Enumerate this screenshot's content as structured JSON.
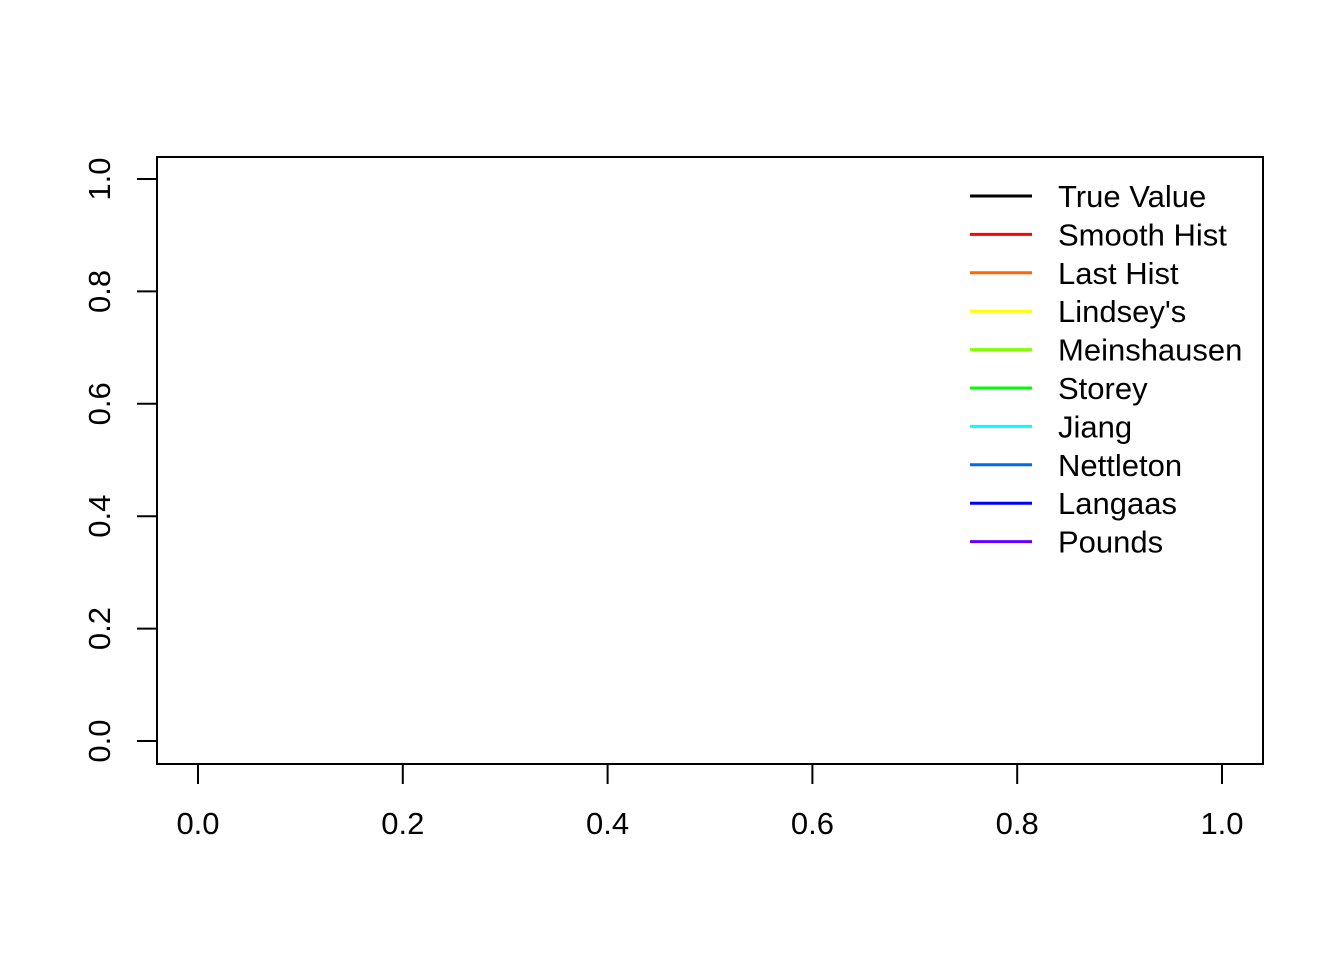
{
  "chart_data": {
    "type": "line",
    "title": "",
    "xlabel": "",
    "ylabel": "",
    "xlim": [
      0,
      1
    ],
    "ylim": [
      0,
      1
    ],
    "x_ticks": [
      "0.0",
      "0.2",
      "0.4",
      "0.6",
      "0.8",
      "1.0"
    ],
    "y_ticks": [
      "0.0",
      "0.2",
      "0.4",
      "0.6",
      "0.8",
      "1.0"
    ],
    "grid": false,
    "legend_position": "top-right",
    "series": [
      {
        "name": "True Value",
        "color": "#000000",
        "values": []
      },
      {
        "name": "Smooth Hist",
        "color": "#ff0000",
        "values": []
      },
      {
        "name": "Last Hist",
        "color": "#ff6600",
        "values": []
      },
      {
        "name": "Lindsey's",
        "color": "#ffff00",
        "values": []
      },
      {
        "name": "Meinshausen",
        "color": "#80ff00",
        "values": []
      },
      {
        "name": "Storey",
        "color": "#00ff00",
        "values": []
      },
      {
        "name": "Jiang",
        "color": "#00ffff",
        "values": []
      },
      {
        "name": "Nettleton",
        "color": "#0066ff",
        "values": []
      },
      {
        "name": "Langaas",
        "color": "#0000ff",
        "values": []
      },
      {
        "name": "Pounds",
        "color": "#6600ff",
        "values": []
      }
    ]
  }
}
